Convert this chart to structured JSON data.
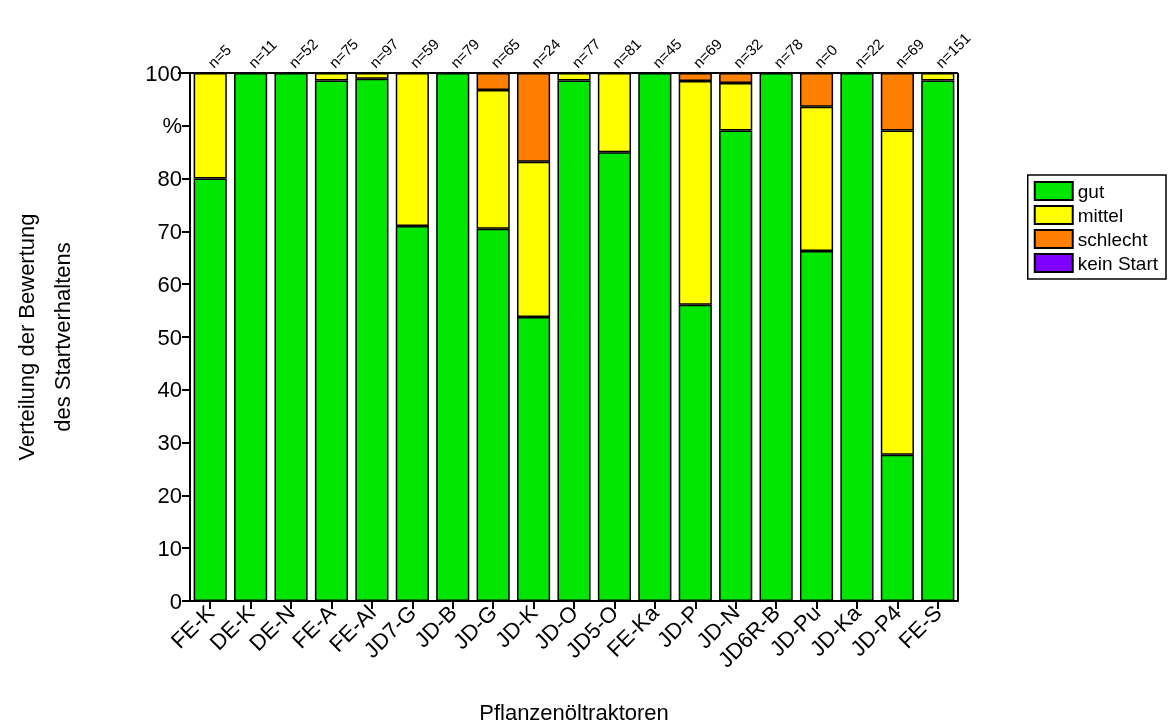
{
  "chart_data": {
    "type": "bar",
    "stacked": true,
    "xlabel": "Pflanzenöltraktoren",
    "ylabel": "Verteilung der Bewertung\ndes Startverhaltens",
    "categories": [
      "FE-K",
      "DE-K",
      "DE-N",
      "FE-A",
      "FE-Al",
      "JD7-G",
      "JD-B",
      "JD-G",
      "JD-K",
      "JD-O",
      "JD5-O",
      "FE-Ka",
      "JD-P",
      "JD-N",
      "JD6R-B",
      "JD-Pu",
      "JD-Ka",
      "JD-P4",
      "FE-S"
    ],
    "series": [
      {
        "name": "gut",
        "color": "#00e600",
        "values": [
          80,
          100,
          100,
          98.6,
          98.9,
          71,
          100,
          70.5,
          53.8,
          98.6,
          85,
          100,
          56.1,
          89.1,
          100,
          66.3,
          100,
          27.7,
          98.6
        ]
      },
      {
        "name": "mittel",
        "color": "#ffff00",
        "values": [
          20,
          0,
          0,
          1.4,
          1.1,
          29,
          0,
          26.3,
          29.4,
          1.4,
          15,
          0,
          42.4,
          9,
          0,
          27.3,
          0,
          61.4,
          1.4
        ]
      },
      {
        "name": "schlecht",
        "color": "#ff8000",
        "values": [
          0,
          0,
          0,
          0,
          0,
          0,
          0,
          3.2,
          16.8,
          0,
          0,
          0,
          1.5,
          1.9,
          0,
          6.4,
          0,
          10.9,
          0
        ]
      },
      {
        "name": "kein Start",
        "color": "#8000ff",
        "values": [
          0,
          0,
          0,
          0,
          0,
          0,
          0,
          0,
          0,
          0,
          0,
          0,
          0,
          0,
          0,
          0,
          0,
          0,
          0
        ]
      }
    ],
    "ylim": [
      0,
      100
    ],
    "yticks": [
      0,
      10,
      20,
      30,
      40,
      50,
      60,
      70,
      80,
      {
        "value": 90,
        "label": "%"
      },
      100
    ],
    "legend": "right",
    "grid": false,
    "annotations": [
      "n=5",
      "n=11",
      "n=52",
      "n=75",
      "n=97",
      "n=59",
      "n=79",
      "n=65",
      "n=24",
      "n=77",
      "n=81",
      "n=45",
      "n=69",
      "n=32",
      "n=78",
      "n=0",
      "n=22",
      "n=69",
      "n=151"
    ]
  }
}
